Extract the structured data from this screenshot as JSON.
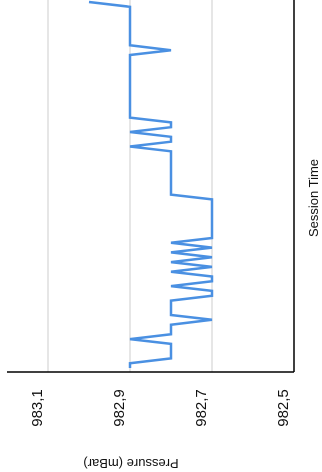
{
  "chart_data": {
    "type": "line",
    "xlabel": "Session Time",
    "ylabel": "Pressure (mBar)",
    "ylim": [
      982.5,
      983.2
    ],
    "y_ticks": [
      983.1,
      982.9,
      982.7,
      982.5
    ],
    "y_tick_labels": [
      "983,1",
      "982,9",
      "982,7",
      "982,5"
    ],
    "grid": true,
    "colors": {
      "line": "#4a90e2",
      "grid": "#cccccc",
      "axis": "#000000"
    },
    "series": [
      {
        "values": [
          982.9,
          982.9,
          982.8,
          982.8,
          982.8,
          982.8,
          982.9,
          982.8,
          982.8,
          982.8,
          982.7,
          982.8,
          982.8,
          982.8,
          982.8,
          982.7,
          982.7,
          982.8,
          982.7,
          982.7,
          982.8,
          982.7,
          982.8,
          982.7,
          982.8,
          982.7,
          982.8,
          982.7,
          982.7,
          982.7,
          982.7,
          982.7,
          982.7,
          982.7,
          982.7,
          982.7,
          982.8,
          982.8,
          982.8,
          982.8,
          982.8,
          982.8,
          982.8,
          982.8,
          982.8,
          982.8,
          982.9,
          982.8,
          982.8,
          982.9,
          982.8,
          982.8,
          982.9,
          982.9,
          982.9,
          982.9,
          982.9,
          982.9,
          982.9,
          982.9,
          982.9,
          982.9,
          982.9,
          982.9,
          982.9,
          982.9,
          982.8,
          982.9,
          982.9,
          982.9,
          982.9,
          982.9,
          982.9,
          982.9,
          982.9,
          982.9,
          983.0
        ]
      }
    ]
  }
}
